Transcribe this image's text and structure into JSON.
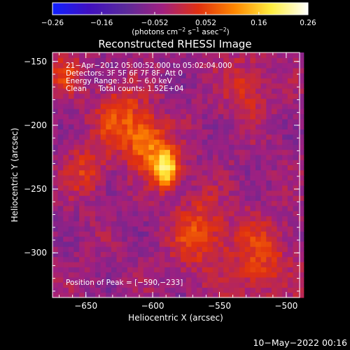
{
  "chart_data": {
    "type": "heatmap",
    "title": "Reconstructed RHESSI Image",
    "xlabel": "Heliocentric X (arcsec)",
    "ylabel": "Heliocentric Y (arcsec)",
    "xlim": [
      -675,
      -490
    ],
    "ylim": [
      -335,
      -143
    ],
    "x_ticks": [
      -650,
      -600,
      -550,
      -500
    ],
    "y_ticks": [
      -150,
      -200,
      -250,
      -300
    ],
    "x_tick_labels": [
      "−650",
      "−600",
      "−550",
      "−500"
    ],
    "y_tick_labels": [
      "−150",
      "−200",
      "−250",
      "−300"
    ],
    "colorbar": {
      "range": [
        -0.26,
        0.26
      ],
      "ticks": [
        -0.26,
        -0.16,
        -0.052,
        0.052,
        0.16,
        0.26
      ],
      "tick_labels": [
        "−0.26",
        "−0.16",
        "−0.052",
        "0.052",
        "0.16",
        "0.26"
      ],
      "units_text": "(photons cm",
      "units_sup1": "−2",
      "units_mid": " s",
      "units_sup2": "−1",
      "units_mid2": " asec",
      "units_sup3": "−2",
      "units_end": ")",
      "colors": [
        "#1020ff",
        "#4010c0",
        "#5a2a9a",
        "#a02080",
        "#e03010",
        "#ff8800",
        "#ffee40",
        "#ffffff"
      ]
    },
    "info_lines": [
      "21−Apr−2012 05:00:52.000 to 05:02:04.000",
      "Detectors: 3F 5F 6F 7F 8F, Att 0",
      "Energy Range: 3.0 − 6.0 keV",
      "Clean     Total counts: 1.52E+04"
    ],
    "peak_label": "Position of Peak = [−590,−233]",
    "peak": [
      -590,
      -233
    ],
    "bright_sources": [
      {
        "x": -590,
        "y": -233,
        "amplitude": 0.26,
        "width": 10
      },
      {
        "x": -605,
        "y": -212,
        "amplitude": 0.14,
        "width": 14
      },
      {
        "x": -625,
        "y": -195,
        "amplitude": 0.1,
        "width": 18
      },
      {
        "x": -665,
        "y": -160,
        "amplitude": 0.08,
        "width": 12
      },
      {
        "x": -650,
        "y": -235,
        "amplitude": 0.08,
        "width": 14
      },
      {
        "x": -565,
        "y": -285,
        "amplitude": 0.1,
        "width": 20
      },
      {
        "x": -520,
        "y": -305,
        "amplitude": 0.09,
        "width": 22
      },
      {
        "x": -530,
        "y": -170,
        "amplitude": 0.07,
        "width": 18
      }
    ]
  },
  "footer": {
    "date": "10−May−2022 00:16"
  }
}
